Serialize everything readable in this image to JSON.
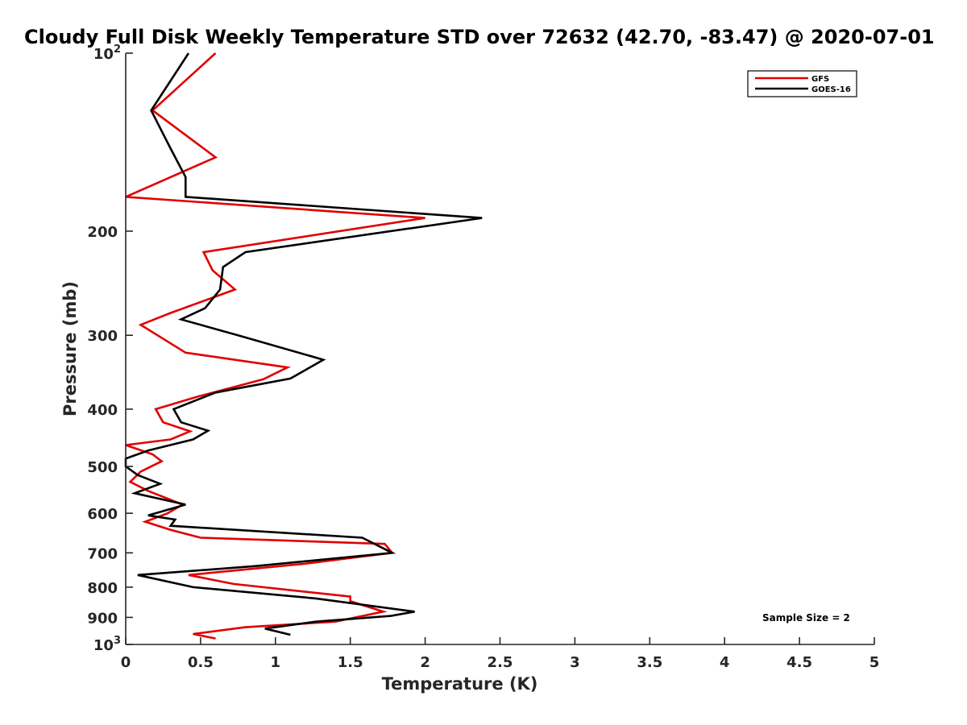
{
  "chart_data": {
    "type": "line",
    "title": "Cloudy Full Disk Weekly Temperature STD over 72632 (42.70, -83.47) @ 2020-07-01",
    "xlabel": "Temperature (K)",
    "ylabel": "Pressure (mb)",
    "xlim": [
      0,
      5
    ],
    "ylim": [
      100,
      1000
    ],
    "y_scale": "log",
    "y_reversed": true,
    "x_ticks": [
      "0",
      "0.5",
      "1",
      "1.5",
      "2",
      "2.5",
      "3",
      "3.5",
      "4",
      "4.5",
      "5"
    ],
    "y_ticks": [
      {
        "value": 100,
        "base": "10",
        "exp": "2"
      },
      {
        "value": 200,
        "label": "200"
      },
      {
        "value": 300,
        "label": "300"
      },
      {
        "value": 400,
        "label": "400"
      },
      {
        "value": 500,
        "label": "500"
      },
      {
        "value": 600,
        "label": "600"
      },
      {
        "value": 700,
        "label": "700"
      },
      {
        "value": 800,
        "label": "800"
      },
      {
        "value": 900,
        "label": "900"
      },
      {
        "value": 1000,
        "base": "10",
        "exp": "3"
      }
    ],
    "legend_position": "top-right",
    "grid": false,
    "annotation": "Sample Size = 2",
    "series": [
      {
        "name": "GFS",
        "color": "#e00000",
        "points": [
          [
            0.6,
            100
          ],
          [
            0.18,
            125
          ],
          [
            0.6,
            150
          ],
          [
            0.0,
            175
          ],
          [
            2.0,
            190
          ],
          [
            0.52,
            217
          ],
          [
            0.58,
            233
          ],
          [
            0.73,
            251
          ],
          [
            0.3,
            275
          ],
          [
            0.1,
            288
          ],
          [
            0.4,
            321
          ],
          [
            1.08,
            340
          ],
          [
            0.92,
            356
          ],
          [
            0.48,
            381
          ],
          [
            0.2,
            400
          ],
          [
            0.25,
            421
          ],
          [
            0.43,
            436
          ],
          [
            0.3,
            450
          ],
          [
            0.0,
            460
          ],
          [
            0.18,
            477
          ],
          [
            0.24,
            490
          ],
          [
            0.1,
            510
          ],
          [
            0.03,
            531
          ],
          [
            0.15,
            550
          ],
          [
            0.38,
            580
          ],
          [
            0.28,
            600
          ],
          [
            0.13,
            620
          ],
          [
            0.3,
            640
          ],
          [
            0.5,
            660
          ],
          [
            1.73,
            676
          ],
          [
            1.78,
            700
          ],
          [
            1.2,
            730
          ],
          [
            0.42,
            763
          ],
          [
            0.72,
            790
          ],
          [
            1.5,
            830
          ],
          [
            1.5,
            845
          ],
          [
            1.72,
            880
          ],
          [
            1.4,
            915
          ],
          [
            0.8,
            935
          ],
          [
            0.45,
            960
          ],
          [
            0.6,
            977
          ]
        ]
      },
      {
        "name": "GOES-16",
        "color": "#000000",
        "points": [
          [
            0.42,
            100
          ],
          [
            0.17,
            125
          ],
          [
            0.3,
            145
          ],
          [
            0.4,
            162
          ],
          [
            0.4,
            175
          ],
          [
            2.38,
            190
          ],
          [
            0.8,
            217
          ],
          [
            0.65,
            230
          ],
          [
            0.63,
            251
          ],
          [
            0.53,
            270
          ],
          [
            0.37,
            282
          ],
          [
            0.75,
            300
          ],
          [
            1.32,
            330
          ],
          [
            1.1,
            355
          ],
          [
            0.6,
            375
          ],
          [
            0.32,
            400
          ],
          [
            0.37,
            421
          ],
          [
            0.55,
            435
          ],
          [
            0.45,
            450
          ],
          [
            0.15,
            470
          ],
          [
            0.0,
            485
          ],
          [
            0.0,
            500
          ],
          [
            0.08,
            517
          ],
          [
            0.23,
            535
          ],
          [
            0.06,
            555
          ],
          [
            0.4,
            580
          ],
          [
            0.15,
            605
          ],
          [
            0.33,
            615
          ],
          [
            0.3,
            630
          ],
          [
            1.58,
            660
          ],
          [
            1.78,
            700
          ],
          [
            0.87,
            737
          ],
          [
            0.08,
            763
          ],
          [
            0.45,
            800
          ],
          [
            1.27,
            836
          ],
          [
            1.93,
            880
          ],
          [
            1.77,
            895
          ],
          [
            1.27,
            915
          ],
          [
            0.93,
            940
          ],
          [
            1.1,
            963
          ]
        ]
      }
    ]
  }
}
